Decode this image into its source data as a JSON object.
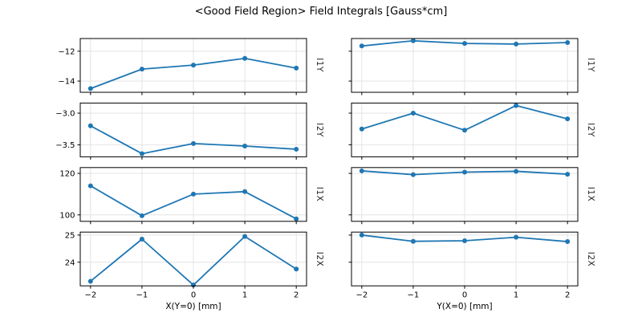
{
  "figure": {
    "title": "<Good Field Region> Field Integrals [Gauss*cm]"
  },
  "chart_data": {
    "type": "line",
    "title": "<Good Field Region> Field Integrals [Gauss*cm]",
    "x": [
      -2,
      -1,
      0,
      1,
      2
    ],
    "xlim": [
      -2.2,
      2.2
    ],
    "xtick_labels": [
      "−2",
      "−1",
      "0",
      "1",
      "2"
    ],
    "grid": true,
    "legend": false,
    "columns": [
      {
        "id": "left",
        "xlabel": "X(Y=0) [mm]"
      },
      {
        "id": "right",
        "xlabel": "Y(X=0) [mm]"
      }
    ],
    "rows": [
      {
        "label": "I1Y",
        "ylim": [
          -14.75,
          -11.15
        ],
        "yticks": [
          -12,
          -14
        ],
        "ytick_labels": [
          "−12",
          "−14"
        ],
        "series": {
          "left": [
            -14.5,
            -13.2,
            -12.93,
            -12.48,
            -13.13
          ],
          "right": [
            -11.65,
            -11.3,
            -11.48,
            -11.52,
            -11.42
          ]
        }
      },
      {
        "label": "I2Y",
        "ylim": [
          -3.69,
          -2.84
        ],
        "yticks": [
          -3.0,
          -3.5
        ],
        "ytick_labels": [
          "−3.0",
          "−3.5"
        ],
        "series": {
          "left": [
            -3.2,
            -3.64,
            -3.48,
            -3.52,
            -3.57
          ],
          "right": [
            -3.25,
            -3.0,
            -3.27,
            -2.88,
            -3.09
          ]
        }
      },
      {
        "label": "I1X",
        "ylim": [
          96.9,
          122.8
        ],
        "yticks": [
          120,
          100
        ],
        "ytick_labels": [
          "120",
          "100"
        ],
        "series": {
          "left": [
            114.0,
            99.6,
            110.0,
            111.2,
            98.1
          ],
          "right": [
            121.2,
            119.4,
            120.6,
            121.0,
            119.6
          ]
        }
      },
      {
        "label": "I2X",
        "ylim": [
          23.13,
          25.11
        ],
        "yticks": [
          25,
          24
        ],
        "ytick_labels": [
          "25",
          "24"
        ],
        "series": {
          "left": [
            23.3,
            24.85,
            23.16,
            24.95,
            23.75
          ],
          "right": [
            25.0,
            24.77,
            24.79,
            24.92,
            24.76
          ]
        }
      }
    ],
    "style": {
      "line_color": "#1f77b4",
      "grid_color": "#e4e4e4",
      "spine_color": "#000000",
      "tick_color": "#000000",
      "text_color": "#000000"
    }
  }
}
